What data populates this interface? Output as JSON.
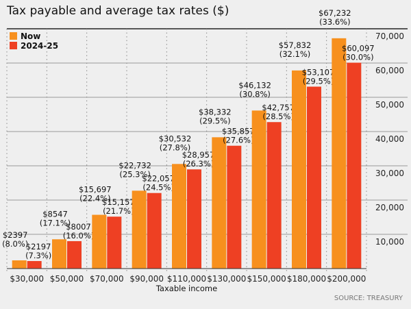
{
  "chart_data": {
    "type": "bar",
    "title": "Tax payable and average tax rates ($)",
    "xlabel": "Taxable income",
    "ylabel": "",
    "source": "SOURCE: TREASURY",
    "ylim": [
      0,
      70000
    ],
    "yticks": [
      "10,000",
      "20,000",
      "30,000",
      "40,000",
      "50,000",
      "60,000",
      "70,000"
    ],
    "ytick_values": [
      10000,
      20000,
      30000,
      40000,
      50000,
      60000,
      70000
    ],
    "grid": true,
    "legend_position": "top-left",
    "categories": [
      "$30,000",
      "$50,000",
      "$70,000",
      "$90,000",
      "$110,000",
      "$130,000",
      "$150,000",
      "$180,000",
      "$200,000"
    ],
    "series": [
      {
        "name": "Now",
        "color": "#f7901e",
        "values": [
          2397,
          8547,
          15697,
          22732,
          30532,
          38332,
          46132,
          57832,
          67232
        ],
        "labels": [
          "$2397",
          "$8547",
          "$15,697",
          "$22,732",
          "$30,532",
          "$38,332",
          "$46,132",
          "$57,832",
          "$67,232"
        ],
        "rates": [
          "(8.0%)",
          "(17.1%)",
          "(22.4%)",
          "(25.3%)",
          "(27.8%)",
          "(29.5%)",
          "(30.8%)",
          "(32.1%)",
          "(33.6%)"
        ]
      },
      {
        "name": "2024-25",
        "color": "#ee4023",
        "values": [
          2197,
          8007,
          15157,
          22057,
          28957,
          35857,
          42757,
          53107,
          60097
        ],
        "labels": [
          "$2197",
          "$8007",
          "$15,157",
          "$22,057",
          "$28,957",
          "$35,857",
          "$42,757",
          "$53,107",
          "$60,097"
        ],
        "rates": [
          "(7.3%)",
          "(16.0%)",
          "(21.7%)",
          "(24.5%)",
          "(26.3%)",
          "(27.6%)",
          "(28.5%)",
          "(29.5%)",
          "(30.0%)"
        ]
      }
    ]
  }
}
